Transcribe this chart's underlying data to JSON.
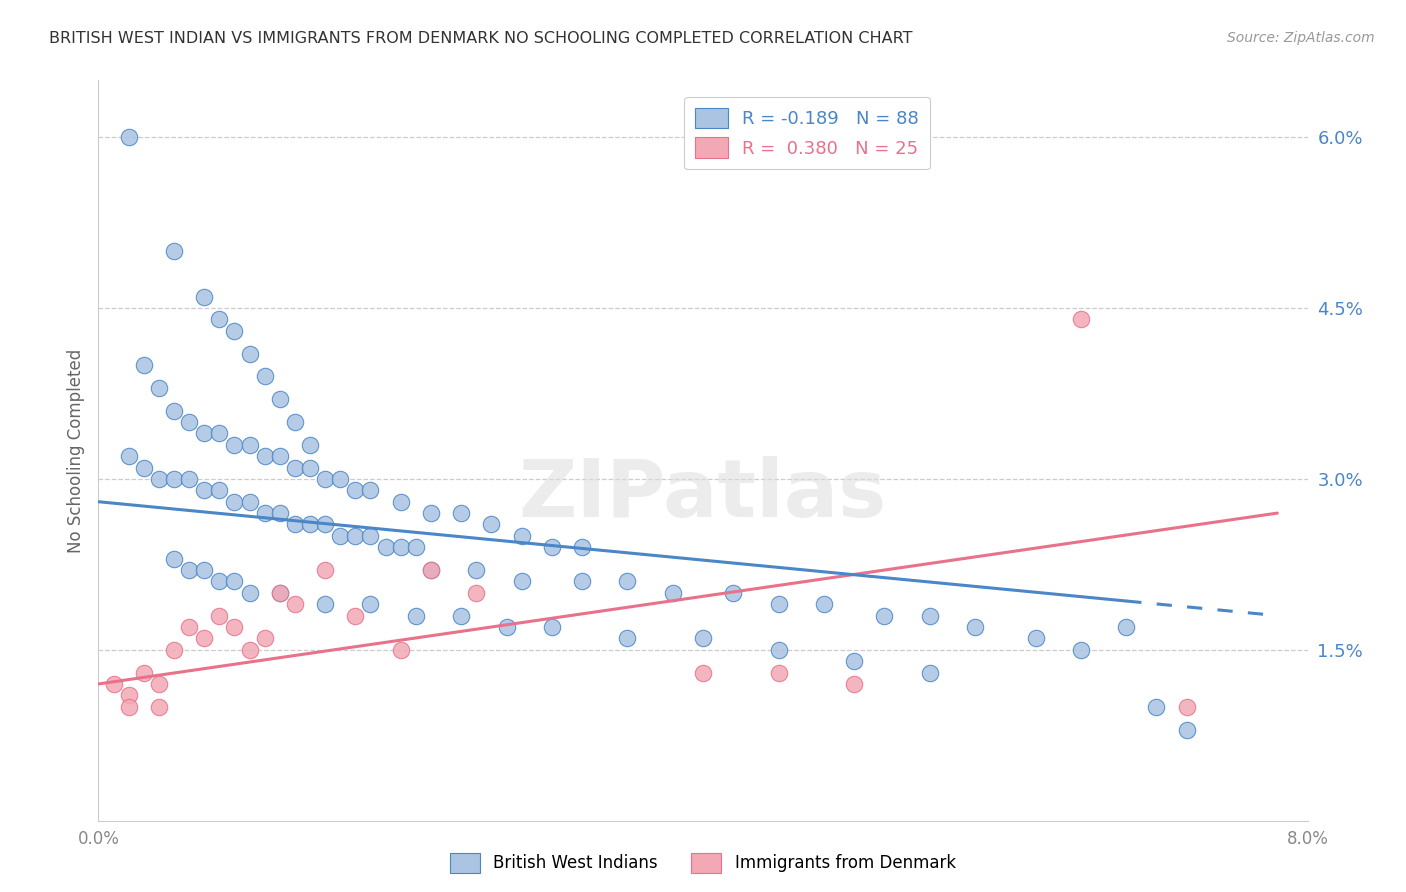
{
  "title": "BRITISH WEST INDIAN VS IMMIGRANTS FROM DENMARK NO SCHOOLING COMPLETED CORRELATION CHART",
  "source": "Source: ZipAtlas.com",
  "ylabel": "No Schooling Completed",
  "yticks": [
    "1.5%",
    "3.0%",
    "4.5%",
    "6.0%"
  ],
  "ytick_vals": [
    0.015,
    0.03,
    0.045,
    0.06
  ],
  "xmin": 0.0,
  "xmax": 0.08,
  "ymin": 0.0,
  "ymax": 0.065,
  "legend_r1_r": "R = ",
  "legend_r1_v": "-0.189",
  "legend_r1_n": "   N = ",
  "legend_r1_nv": "88",
  "legend_r2_r": "R =  ",
  "legend_r2_v": "0.380",
  "legend_r2_n": "   N = ",
  "legend_r2_nv": "25",
  "blue_color": "#aac4e2",
  "pink_color": "#f2a8b5",
  "blue_line_color": "#4a86c8",
  "pink_line_color": "#e8728a",
  "blue_line_start_y": 0.028,
  "blue_line_end_y": 0.018,
  "blue_line_solid_end_x": 0.068,
  "blue_line_dash_end_x": 0.078,
  "pink_line_start_y": 0.012,
  "pink_line_end_y": 0.027,
  "blue_scatter_x": [
    0.002,
    0.005,
    0.007,
    0.008,
    0.009,
    0.01,
    0.011,
    0.012,
    0.013,
    0.014,
    0.002,
    0.003,
    0.004,
    0.005,
    0.006,
    0.007,
    0.008,
    0.009,
    0.01,
    0.011,
    0.012,
    0.013,
    0.014,
    0.015,
    0.016,
    0.017,
    0.018,
    0.019,
    0.02,
    0.021,
    0.003,
    0.004,
    0.005,
    0.006,
    0.007,
    0.008,
    0.009,
    0.01,
    0.011,
    0.012,
    0.013,
    0.014,
    0.015,
    0.016,
    0.017,
    0.018,
    0.02,
    0.022,
    0.024,
    0.026,
    0.028,
    0.03,
    0.032,
    0.022,
    0.025,
    0.028,
    0.032,
    0.035,
    0.038,
    0.042,
    0.045,
    0.048,
    0.052,
    0.055,
    0.058,
    0.062,
    0.065,
    0.068,
    0.07,
    0.072,
    0.005,
    0.006,
    0.007,
    0.008,
    0.009,
    0.01,
    0.012,
    0.015,
    0.018,
    0.021,
    0.024,
    0.027,
    0.03,
    0.035,
    0.04,
    0.045,
    0.05,
    0.055
  ],
  "blue_scatter_y": [
    0.06,
    0.05,
    0.046,
    0.044,
    0.043,
    0.041,
    0.039,
    0.037,
    0.035,
    0.033,
    0.032,
    0.031,
    0.03,
    0.03,
    0.03,
    0.029,
    0.029,
    0.028,
    0.028,
    0.027,
    0.027,
    0.026,
    0.026,
    0.026,
    0.025,
    0.025,
    0.025,
    0.024,
    0.024,
    0.024,
    0.04,
    0.038,
    0.036,
    0.035,
    0.034,
    0.034,
    0.033,
    0.033,
    0.032,
    0.032,
    0.031,
    0.031,
    0.03,
    0.03,
    0.029,
    0.029,
    0.028,
    0.027,
    0.027,
    0.026,
    0.025,
    0.024,
    0.024,
    0.022,
    0.022,
    0.021,
    0.021,
    0.021,
    0.02,
    0.02,
    0.019,
    0.019,
    0.018,
    0.018,
    0.017,
    0.016,
    0.015,
    0.017,
    0.01,
    0.008,
    0.023,
    0.022,
    0.022,
    0.021,
    0.021,
    0.02,
    0.02,
    0.019,
    0.019,
    0.018,
    0.018,
    0.017,
    0.017,
    0.016,
    0.016,
    0.015,
    0.014,
    0.013
  ],
  "pink_scatter_x": [
    0.001,
    0.002,
    0.002,
    0.003,
    0.004,
    0.004,
    0.005,
    0.006,
    0.007,
    0.008,
    0.009,
    0.01,
    0.011,
    0.012,
    0.013,
    0.015,
    0.017,
    0.02,
    0.022,
    0.025,
    0.04,
    0.045,
    0.05,
    0.065,
    0.072
  ],
  "pink_scatter_y": [
    0.012,
    0.011,
    0.01,
    0.013,
    0.012,
    0.01,
    0.015,
    0.017,
    0.016,
    0.018,
    0.017,
    0.015,
    0.016,
    0.02,
    0.019,
    0.022,
    0.018,
    0.015,
    0.022,
    0.02,
    0.013,
    0.013,
    0.012,
    0.044,
    0.01
  ]
}
